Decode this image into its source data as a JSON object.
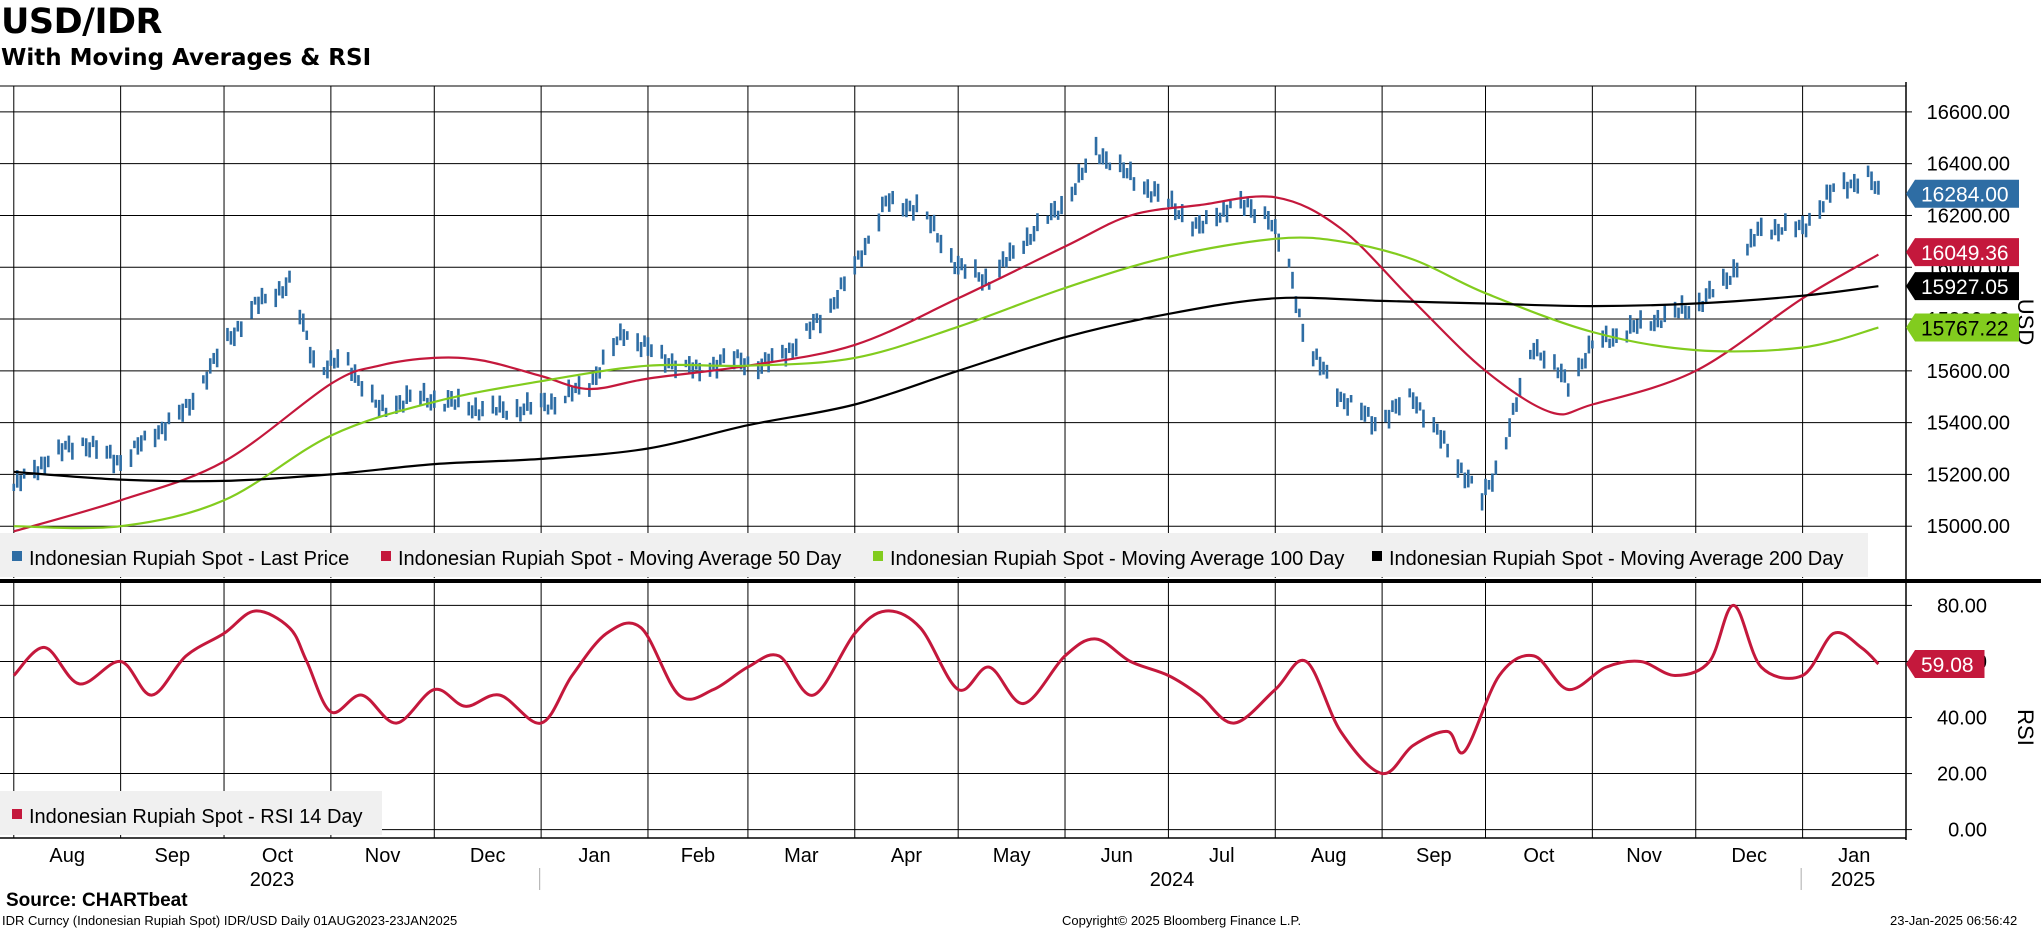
{
  "header": {
    "title": "USD/IDR",
    "subtitle": "With Moving Averages & RSI"
  },
  "source": "Source: CHARTbeat",
  "footer": {
    "left": "IDR Curncy (Indonesian Rupiah Spot) IDR/USD  Daily 01AUG2023-23JAN2025",
    "center": "Copyright© 2025 Bloomberg Finance L.P.",
    "right": "23-Jan-2025 06:56:42"
  },
  "colors": {
    "price": "#2e6da4",
    "ma50": "#c4183c",
    "ma100": "#82cc1e",
    "ma200": "#000000",
    "rsi": "#c4183c"
  },
  "chart_data": [
    {
      "type": "line",
      "name": "price-panel",
      "ylabel": "USD",
      "ylim": [
        14800,
        16700
      ],
      "y_ticks": [
        "15000.00",
        "15200.00",
        "15400.00",
        "15600.00",
        "15800.00",
        "16000.00",
        "16200.00",
        "16400.00",
        "16600.00"
      ],
      "x_ticks": [
        "Aug",
        "Sep",
        "Oct",
        "Nov",
        "Dec",
        "Jan",
        "Feb",
        "Mar",
        "Apr",
        "May",
        "Jun",
        "Jul",
        "Aug",
        "Sep",
        "Oct",
        "Nov",
        "Dec",
        "Jan"
      ],
      "year_labels": [
        "2023",
        "2024",
        "2025"
      ],
      "grid": true,
      "legend_position": "bottom",
      "series": [
        {
          "name": "Indonesian Rupiah Spot - Last Price",
          "color": "#2e6da4",
          "last_label": "16284.00",
          "dates": [
            "2023-08-01",
            "2023-08-10",
            "2023-08-20",
            "2023-09-01",
            "2023-09-10",
            "2023-09-20",
            "2023-10-01",
            "2023-10-10",
            "2023-10-20",
            "2023-10-28",
            "2023-11-05",
            "2023-11-15",
            "2023-11-25",
            "2023-12-05",
            "2023-12-15",
            "2023-12-25",
            "2024-01-05",
            "2024-01-15",
            "2024-01-25",
            "2024-02-05",
            "2024-02-15",
            "2024-02-25",
            "2024-03-05",
            "2024-03-15",
            "2024-03-25",
            "2024-04-01",
            "2024-04-10",
            "2024-04-20",
            "2024-05-01",
            "2024-05-10",
            "2024-05-20",
            "2024-06-01",
            "2024-06-10",
            "2024-06-20",
            "2024-07-01",
            "2024-07-10",
            "2024-07-20",
            "2024-07-30",
            "2024-08-05",
            "2024-08-10",
            "2024-08-20",
            "2024-08-30",
            "2024-09-10",
            "2024-09-20",
            "2024-09-30",
            "2024-10-05",
            "2024-10-15",
            "2024-10-25",
            "2024-11-01",
            "2024-11-10",
            "2024-11-20",
            "2024-12-01",
            "2024-12-10",
            "2024-12-20",
            "2025-01-01",
            "2025-01-10",
            "2025-01-20",
            "2025-01-23"
          ],
          "values": [
            15150,
            15250,
            15330,
            15250,
            15350,
            15450,
            15700,
            15850,
            15940,
            15600,
            15650,
            15450,
            15500,
            15480,
            15450,
            15450,
            15480,
            15550,
            15750,
            15650,
            15600,
            15650,
            15620,
            15700,
            15850,
            16000,
            16250,
            16230,
            16000,
            15950,
            16100,
            16250,
            16450,
            16350,
            16250,
            16150,
            16250,
            16200,
            16000,
            15700,
            15500,
            15400,
            15500,
            15300,
            15100,
            15250,
            15700,
            15550,
            15700,
            15750,
            15800,
            15850,
            15950,
            16150,
            16150,
            16300,
            16350,
            16284
          ]
        },
        {
          "name": "Indonesian Rupiah Spot - Moving Average 50 Day",
          "color": "#c4183c",
          "last_label": "16049.36",
          "dates": [
            "2023-08-01",
            "2023-09-01",
            "2023-10-01",
            "2023-11-01",
            "2023-11-15",
            "2023-12-01",
            "2023-12-15",
            "2024-01-01",
            "2024-01-15",
            "2024-02-01",
            "2024-03-01",
            "2024-04-01",
            "2024-05-01",
            "2024-06-01",
            "2024-06-20",
            "2024-07-10",
            "2024-08-01",
            "2024-08-20",
            "2024-09-10",
            "2024-10-01",
            "2024-10-20",
            "2024-11-01",
            "2024-12-01",
            "2025-01-01",
            "2025-01-23"
          ],
          "values": [
            14980,
            15100,
            15250,
            15550,
            15620,
            15650,
            15640,
            15580,
            15530,
            15570,
            15620,
            15700,
            15880,
            16080,
            16200,
            16240,
            16270,
            16150,
            15870,
            15600,
            15440,
            15470,
            15600,
            15880,
            16049
          ]
        },
        {
          "name": "Indonesian Rupiah Spot - Moving Average 100 Day",
          "color": "#82cc1e",
          "last_label": "15767.22",
          "dates": [
            "2023-08-01",
            "2023-09-01",
            "2023-10-01",
            "2023-11-01",
            "2023-12-01",
            "2024-01-01",
            "2024-02-01",
            "2024-03-01",
            "2024-04-01",
            "2024-05-01",
            "2024-06-01",
            "2024-07-01",
            "2024-08-01",
            "2024-08-20",
            "2024-09-10",
            "2024-10-01",
            "2024-11-01",
            "2024-12-01",
            "2025-01-01",
            "2025-01-23"
          ],
          "values": [
            15000,
            15000,
            15100,
            15350,
            15480,
            15560,
            15620,
            15620,
            15650,
            15770,
            15920,
            16040,
            16110,
            16100,
            16030,
            15900,
            15750,
            15680,
            15690,
            15767
          ]
        },
        {
          "name": "Indonesian Rupiah Spot - Moving Average 200 Day",
          "color": "#000000",
          "last_label": "15927.05",
          "dates": [
            "2023-08-01",
            "2023-09-01",
            "2023-10-01",
            "2023-11-01",
            "2023-12-01",
            "2024-01-01",
            "2024-02-01",
            "2024-03-01",
            "2024-04-01",
            "2024-05-01",
            "2024-06-01",
            "2024-07-01",
            "2024-08-01",
            "2024-09-01",
            "2024-10-01",
            "2024-11-01",
            "2024-12-01",
            "2025-01-01",
            "2025-01-23"
          ],
          "values": [
            15210,
            15180,
            15175,
            15200,
            15240,
            15260,
            15300,
            15390,
            15470,
            15600,
            15730,
            15820,
            15880,
            15870,
            15860,
            15850,
            15860,
            15890,
            15927
          ]
        }
      ]
    },
    {
      "type": "line",
      "name": "rsi-panel",
      "ylabel": "RSI",
      "ylim": [
        -3,
        88
      ],
      "y_ticks": [
        "0.00",
        "20.00",
        "40.00",
        "60.00",
        "80.00"
      ],
      "grid": true,
      "legend_position": "bottom-left",
      "series": [
        {
          "name": "Indonesian Rupiah Spot - RSI 14 Day",
          "color": "#c4183c",
          "last_label": "59.08",
          "dates": [
            "2023-08-01",
            "2023-08-10",
            "2023-08-20",
            "2023-09-01",
            "2023-09-10",
            "2023-09-20",
            "2023-10-01",
            "2023-10-10",
            "2023-10-20",
            "2023-10-25",
            "2023-11-01",
            "2023-11-10",
            "2023-11-20",
            "2023-12-01",
            "2023-12-10",
            "2023-12-20",
            "2024-01-01",
            "2024-01-10",
            "2024-01-20",
            "2024-01-30",
            "2024-02-10",
            "2024-02-20",
            "2024-03-01",
            "2024-03-10",
            "2024-03-20",
            "2024-04-01",
            "2024-04-10",
            "2024-04-20",
            "2024-05-01",
            "2024-05-10",
            "2024-05-20",
            "2024-06-01",
            "2024-06-10",
            "2024-06-20",
            "2024-07-01",
            "2024-07-10",
            "2024-07-20",
            "2024-08-01",
            "2024-08-10",
            "2024-08-20",
            "2024-09-01",
            "2024-09-10",
            "2024-09-20",
            "2024-09-25",
            "2024-10-05",
            "2024-10-15",
            "2024-10-25",
            "2024-11-05",
            "2024-11-15",
            "2024-11-25",
            "2024-12-05",
            "2024-12-12",
            "2024-12-20",
            "2025-01-01",
            "2025-01-10",
            "2025-01-18",
            "2025-01-23"
          ],
          "values": [
            55,
            65,
            52,
            60,
            48,
            62,
            70,
            78,
            72,
            60,
            42,
            48,
            38,
            50,
            44,
            48,
            38,
            55,
            70,
            72,
            48,
            50,
            58,
            62,
            48,
            70,
            78,
            72,
            50,
            58,
            45,
            62,
            68,
            60,
            55,
            48,
            38,
            50,
            60,
            35,
            20,
            30,
            35,
            28,
            55,
            62,
            50,
            58,
            60,
            55,
            60,
            80,
            58,
            55,
            70,
            65,
            59.08
          ]
        }
      ]
    }
  ]
}
